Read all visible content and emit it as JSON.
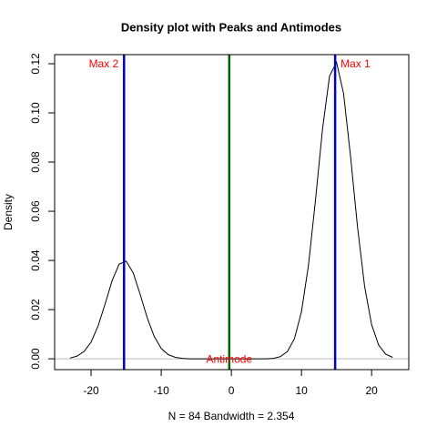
{
  "chart_data": {
    "type": "line",
    "title": "Density plot with Peaks and Antimodes",
    "xlabel": "N = 84   Bandwidth = 2.354",
    "ylabel": "Density",
    "x": [
      -23,
      -22,
      -21,
      -20,
      -19,
      -18,
      -17,
      -16,
      -15,
      -14,
      -13,
      -12,
      -11,
      -10,
      -9,
      -8,
      -7,
      -6,
      -5,
      -4,
      -3,
      -2,
      -1,
      0,
      1,
      2,
      3,
      4,
      5,
      6,
      7,
      8,
      9,
      10,
      11,
      12,
      13,
      14,
      15,
      16,
      17,
      18,
      19,
      20,
      21,
      22,
      23
    ],
    "series": [
      {
        "color": "#000000",
        "values": [
          0.0003,
          0.0011,
          0.003,
          0.0068,
          0.0134,
          0.0223,
          0.0318,
          0.0385,
          0.0397,
          0.035,
          0.0262,
          0.0167,
          0.0091,
          0.0042,
          0.0017,
          0.0006,
          0.0002,
          0,
          0,
          0,
          0,
          0,
          0,
          0,
          0,
          0,
          0,
          0,
          0,
          0.0002,
          0.0009,
          0.003,
          0.0082,
          0.0192,
          0.0381,
          0.0646,
          0.0934,
          0.115,
          0.1206,
          0.1079,
          0.0822,
          0.0534,
          0.0295,
          0.0139,
          0.0056,
          0.0019,
          0.0006
        ]
      }
    ],
    "vlines": [
      {
        "label": "Max 1",
        "value": 14.8,
        "color": "#0000cd"
      },
      {
        "label": "Max 2",
        "value": -15.3,
        "color": "#0000cd"
      },
      {
        "label": "Antimode",
        "value": -0.3,
        "color": "#006400"
      }
    ],
    "label_color": "#ff0000",
    "hline": {
      "value": 0,
      "color": "#bebebe"
    },
    "xlim": [
      -25.2,
      25.3
    ],
    "ylim": [
      -0.0044,
      0.1237
    ],
    "xticks": [
      -20,
      -10,
      0,
      10,
      20
    ],
    "yticks": [
      {
        "value": 0,
        "label": "0.00"
      },
      {
        "value": 0.02,
        "label": "0.02"
      },
      {
        "value": 0.04,
        "label": "0.04"
      },
      {
        "value": 0.06,
        "label": "0.06"
      },
      {
        "value": 0.08,
        "label": "0.08"
      },
      {
        "value": 0.1,
        "label": "0.10"
      },
      {
        "value": 0.12,
        "label": "0.12"
      }
    ]
  }
}
